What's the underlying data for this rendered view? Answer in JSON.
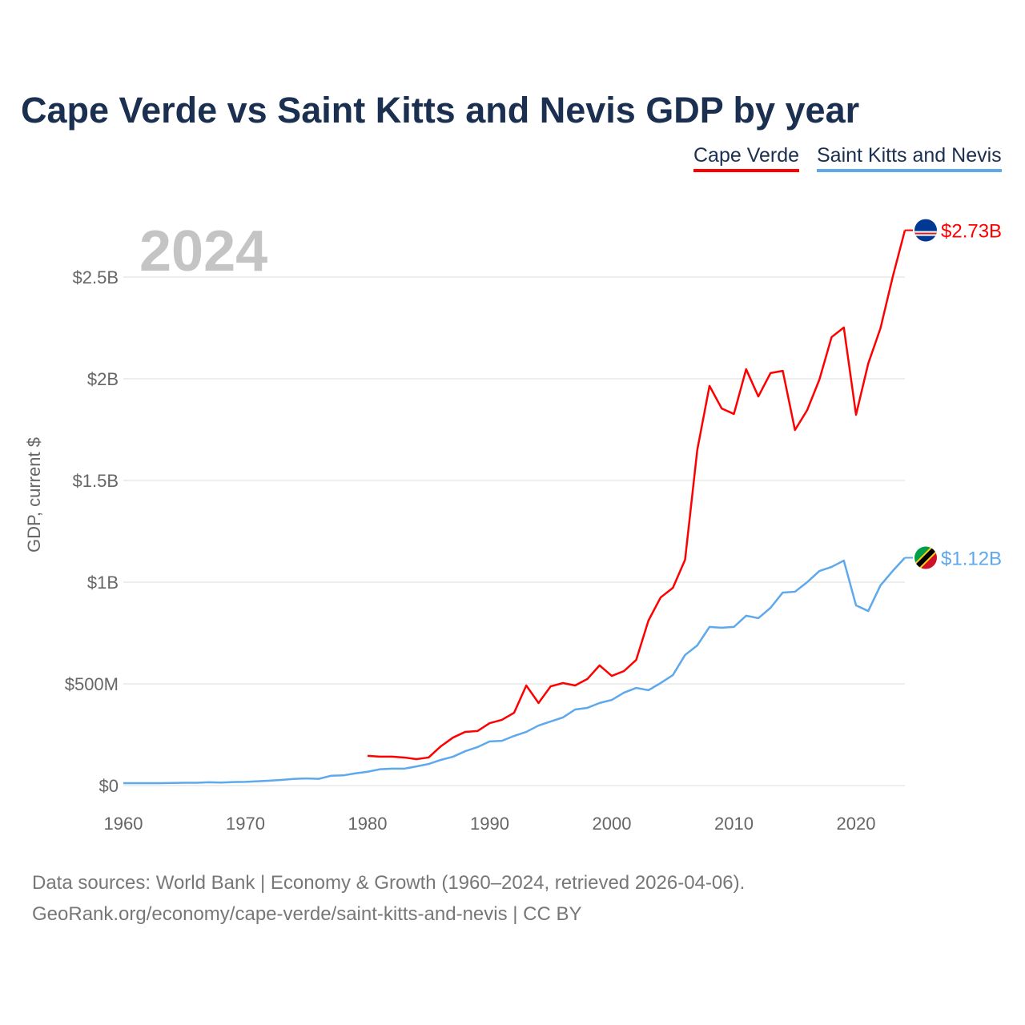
{
  "chart_data": {
    "type": "line",
    "title": "Cape Verde vs Saint Kitts and Nevis GDP by year",
    "ylabel": "GDP, current $",
    "xlabel": "",
    "year_label": "2024",
    "xlim": [
      1960,
      2024
    ],
    "ylim": [
      0,
      2.75
    ],
    "x_ticks": [
      1960,
      1970,
      1980,
      1990,
      2000,
      2010,
      2020
    ],
    "x_tick_labels": [
      "1960",
      "1970",
      "1980",
      "1990",
      "2000",
      "2010",
      "2020"
    ],
    "y_ticks": [
      0,
      0.5,
      1,
      1.5,
      2,
      2.5
    ],
    "y_tick_labels": [
      "$0",
      "$500M",
      "$1B",
      "$1.5B",
      "$2B",
      "$2.5B"
    ],
    "grid": true,
    "legend_placement": "top-right",
    "series": [
      {
        "name": "Cape Verde",
        "color": "#ff0000",
        "end_label": "$2.73B",
        "start_year": 1980,
        "values": [
          0.146,
          0.142,
          0.142,
          0.138,
          0.13,
          0.138,
          0.193,
          0.236,
          0.264,
          0.268,
          0.307,
          0.323,
          0.358,
          0.492,
          0.406,
          0.488,
          0.504,
          0.492,
          0.524,
          0.591,
          0.539,
          0.563,
          0.618,
          0.811,
          0.925,
          0.972,
          1.11,
          1.65,
          1.965,
          1.854,
          1.827,
          2.047,
          1.913,
          2.028,
          2.039,
          1.748,
          1.846,
          1.996,
          2.205,
          2.252,
          1.823,
          2.075,
          2.248,
          2.5,
          2.73
        ]
      },
      {
        "name": "Saint Kitts and Nevis",
        "color": "#5ea8ec",
        "end_label": "$1.12B",
        "start_year": 1960,
        "values": [
          0.012,
          0.012,
          0.012,
          0.012,
          0.013,
          0.014,
          0.014,
          0.016,
          0.015,
          0.017,
          0.018,
          0.021,
          0.024,
          0.028,
          0.033,
          0.035,
          0.033,
          0.048,
          0.05,
          0.06,
          0.068,
          0.08,
          0.083,
          0.083,
          0.094,
          0.106,
          0.126,
          0.142,
          0.169,
          0.189,
          0.217,
          0.22,
          0.244,
          0.264,
          0.295,
          0.315,
          0.335,
          0.374,
          0.382,
          0.406,
          0.421,
          0.457,
          0.48,
          0.469,
          0.504,
          0.543,
          0.642,
          0.689,
          0.78,
          0.776,
          0.78,
          0.835,
          0.823,
          0.874,
          0.949,
          0.953,
          1.0,
          1.055,
          1.075,
          1.106,
          0.886,
          0.858,
          0.984,
          1.055,
          1.12
        ]
      }
    ]
  },
  "footer": {
    "line1": "Data sources: World Bank | Economy & Growth (1960–2024, retrieved 2026-04-06).",
    "line2": "GeoRank.org/economy/cape-verde/saint-kitts-and-nevis | CC BY"
  }
}
